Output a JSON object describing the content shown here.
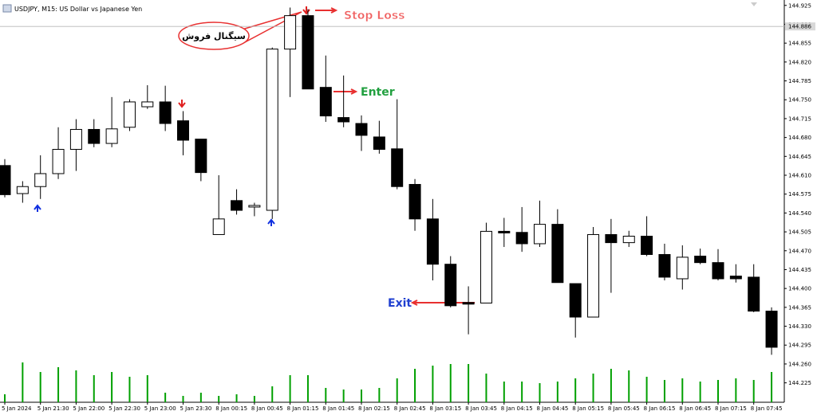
{
  "chart_data": {
    "type": "candlestick",
    "title": "USDJPY, M15: US Dollar vs Japanese Yen",
    "categories": [
      "5 Jan 2024",
      null,
      "5 Jan 21:30",
      null,
      "5 Jan 22:00",
      null,
      "5 Jan 22:30",
      null,
      "5 Jan 23:00",
      null,
      "5 Jan 23:30",
      null,
      "8 Jan 00:15",
      null,
      "8 Jan 00:45",
      null,
      "8 Jan 01:15",
      null,
      "8 Jan 01:45",
      null,
      "8 Jan 02:15",
      null,
      "8 Jan 02:45",
      null,
      "8 Jan 03:15",
      null,
      "8 Jan 03:45",
      null,
      "8 Jan 04:15",
      null,
      "8 Jan 04:45",
      null,
      "8 Jan 05:15",
      null,
      "8 Jan 05:45",
      null,
      "8 Jan 06:15",
      null,
      "8 Jan 06:45",
      null,
      "8 Jan 07:15",
      null,
      "8 Jan 07:45",
      null
    ],
    "open": [
      144.628,
      144.576,
      144.589,
      144.613,
      144.658,
      144.695,
      144.669,
      144.699,
      144.737,
      144.746,
      144.711,
      144.677,
      144.5,
      144.563,
      144.551,
      144.545,
      144.844,
      144.906,
      144.773,
      144.717,
      144.706,
      144.681,
      144.659,
      144.593,
      144.529,
      144.445,
      144.374,
      144.373,
      144.506,
      144.504,
      144.483,
      144.519,
      144.409,
      144.347,
      144.5,
      144.485,
      144.497,
      144.463,
      144.418,
      144.46,
      144.448,
      144.423,
      144.421,
      144.358
    ],
    "high": [
      144.64,
      144.599,
      144.647,
      144.699,
      144.714,
      144.714,
      144.755,
      144.751,
      144.777,
      144.776,
      144.729,
      144.677,
      144.61,
      144.584,
      144.559,
      144.847,
      144.921,
      144.918,
      144.832,
      144.795,
      144.721,
      144.711,
      144.751,
      144.603,
      144.566,
      144.46,
      144.404,
      144.522,
      144.531,
      144.551,
      144.563,
      144.547,
      144.409,
      144.514,
      144.529,
      144.507,
      144.534,
      144.483,
      144.48,
      144.474,
      144.473,
      144.445,
      144.445,
      144.365
    ],
    "low": [
      144.569,
      144.559,
      144.566,
      144.603,
      144.618,
      144.662,
      144.662,
      144.692,
      144.733,
      144.692,
      144.647,
      144.599,
      144.5,
      144.537,
      144.534,
      144.529,
      144.755,
      144.77,
      144.709,
      144.699,
      144.655,
      144.65,
      144.584,
      144.507,
      144.415,
      144.365,
      144.315,
      144.373,
      144.477,
      144.468,
      144.477,
      144.411,
      144.309,
      144.347,
      144.392,
      144.477,
      144.46,
      144.415,
      144.398,
      144.445,
      144.415,
      144.411,
      144.356,
      144.277
    ],
    "close": [
      144.574,
      144.589,
      144.613,
      144.658,
      144.695,
      144.669,
      144.696,
      144.746,
      144.746,
      144.706,
      144.675,
      144.615,
      144.529,
      144.545,
      144.554,
      144.844,
      144.906,
      144.77,
      144.72,
      144.709,
      144.684,
      144.658,
      144.589,
      144.529,
      144.445,
      144.368,
      144.371,
      144.506,
      144.503,
      144.483,
      144.519,
      144.411,
      144.347,
      144.5,
      144.485,
      144.497,
      144.463,
      144.421,
      144.458,
      144.448,
      144.418,
      144.418,
      144.358,
      144.291
    ],
    "volume": [
      10,
      50,
      38,
      44,
      40,
      34,
      38,
      32,
      34,
      12,
      8,
      12,
      8,
      10,
      8,
      20,
      34,
      34,
      18,
      16,
      16,
      18,
      30,
      42,
      46,
      48,
      48,
      36,
      26,
      26,
      24,
      26,
      30,
      36,
      42,
      40,
      32,
      28,
      30,
      26,
      28,
      30,
      28,
      38
    ],
    "ylim": [
      144.189,
      144.935
    ],
    "yticks": [
      144.925,
      {
        "value": 144.89,
        "label": "144.890"
      },
      144.855,
      {
        "value": 144.82,
        "label": "144.820"
      },
      144.785,
      {
        "value": 144.75,
        "label": "144.750"
      },
      144.715,
      {
        "value": 144.68,
        "label": "144.680"
      },
      144.645,
      {
        "value": 144.61,
        "label": "144.610"
      },
      144.575,
      {
        "value": 144.54,
        "label": "144.540"
      },
      144.505,
      {
        "value": 144.47,
        "label": "144.470"
      },
      144.435,
      {
        "value": 144.4,
        "label": "144.400"
      },
      144.365,
      {
        "value": 144.33,
        "label": "144.330"
      },
      144.295,
      {
        "value": 144.26,
        "label": "144.260"
      },
      144.225
    ],
    "current_price": 144.886,
    "annotations": {
      "stop_loss": "Stop Loss",
      "enter": "Enter",
      "exit": "Exit",
      "signal": "سیگنال فروش"
    },
    "bull_color": "#ffffff",
    "bear_color": "#000000",
    "volume_color": "#00a000"
  }
}
